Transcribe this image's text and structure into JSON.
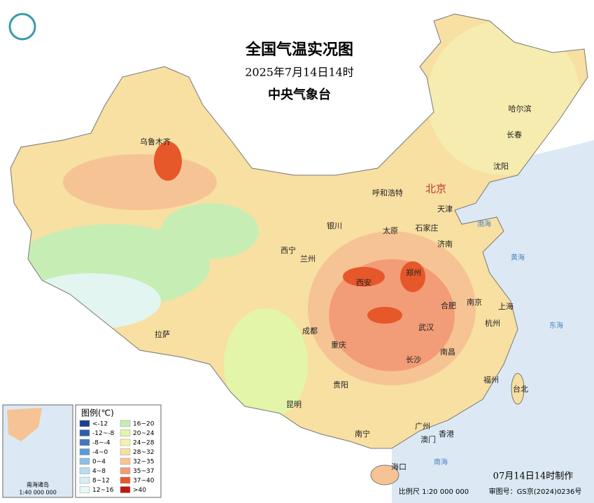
{
  "header": {
    "title": "全国气温实况图",
    "time": "2025年7月14日14时",
    "agency": "中央气象台"
  },
  "cities": [
    "乌鲁木齐",
    "哈尔滨",
    "长春",
    "沈阳",
    "呼和浩特",
    "北京",
    "天津",
    "银川",
    "太原",
    "石家庄",
    "西宁",
    "兰州",
    "济南",
    "西安",
    "郑州",
    "合肥",
    "南京",
    "上海",
    "成都",
    "武汉",
    "杭州",
    "重庆",
    "拉萨",
    "长沙",
    "南昌",
    "贵阳",
    "福州",
    "台北",
    "昆明",
    "南宁",
    "广州",
    "澳门",
    "香港",
    "海口"
  ],
  "seas": [
    "渤海",
    "黄海",
    "东海",
    "南海"
  ],
  "legend": {
    "title": "图例(℃)",
    "items": [
      {
        "label": "<-12",
        "color": "#1b3f8f"
      },
      {
        "label": "-12~-8",
        "color": "#2e5ea8"
      },
      {
        "label": "-8~-4",
        "color": "#3f78c0"
      },
      {
        "label": "-4~0",
        "color": "#5c98d6"
      },
      {
        "label": "0~4",
        "color": "#8fbee8"
      },
      {
        "label": "4~8",
        "color": "#b8dcf2"
      },
      {
        "label": "8~12",
        "color": "#d8eef8"
      },
      {
        "label": "12~16",
        "color": "#eaf7f7"
      },
      {
        "label": "16~20",
        "color": "#c6eeb4"
      },
      {
        "label": "20~24",
        "color": "#e2f5a8"
      },
      {
        "label": "24~28",
        "color": "#f6f2a8"
      },
      {
        "label": "28~32",
        "color": "#f8dfa2"
      },
      {
        "label": "32~35",
        "color": "#f6c494"
      },
      {
        "label": "35~37",
        "color": "#f29c78"
      },
      {
        "label": "37~40",
        "color": "#e6572a"
      },
      {
        "label": ">40",
        "color": "#c0180c"
      }
    ]
  },
  "inset": {
    "title": "南海诸岛",
    "scale": "1:40 000 000"
  },
  "footer": {
    "made": "07月14日14时制作",
    "scale": "比例尺 1:20 000 000",
    "approval": "审图号：GS京(2024)0236号"
  }
}
